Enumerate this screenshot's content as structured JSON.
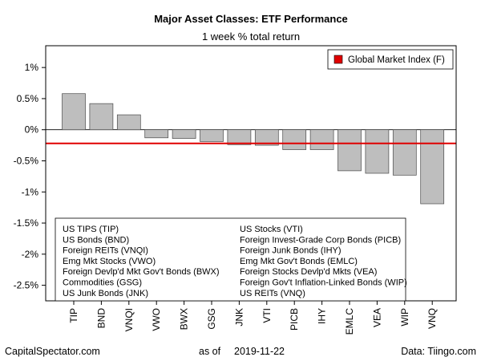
{
  "chart_data": {
    "type": "bar",
    "title": "Major Asset Classes: ETF Performance",
    "subtitle": "1 week % total return",
    "categories": [
      "TIP",
      "BND",
      "VNQI",
      "VWO",
      "BWX",
      "GSG",
      "JNK",
      "VTI",
      "PICB",
      "IHY",
      "EMLC",
      "VEA",
      "WIP",
      "VNQ"
    ],
    "values": [
      0.58,
      0.42,
      0.24,
      -0.13,
      -0.14,
      -0.19,
      -0.24,
      -0.25,
      -0.32,
      -0.32,
      -0.66,
      -0.7,
      -0.73,
      -1.19
    ],
    "ylim": [
      -2.75,
      1.35
    ],
    "yticks": [
      1,
      0.5,
      0,
      -0.5,
      -1,
      -1.5,
      -2,
      -2.5
    ],
    "ytick_labels": [
      "1%",
      "0.5%",
      "0%",
      "-0.5%",
      "-1%",
      "-1.5%",
      "-2%",
      "-2.5%"
    ],
    "bar_color": "#bebebe",
    "reference_line": {
      "value": -0.22,
      "label": "Global Market Index (F)",
      "color": "#e00000"
    },
    "legend_position": "top-right",
    "key_left": [
      "US TIPS (TIP)",
      "US Bonds (BND)",
      "Foreign REITs (VNQI)",
      "Emg Mkt Stocks (VWO)",
      "Foreign Devlp'd Mkt Gov't Bonds (BWX)",
      "Commodities (GSG)",
      "US Junk Bonds (JNK)"
    ],
    "key_right": [
      "US Stocks (VTI)",
      "Foreign Invest-Grade Corp Bonds (PICB)",
      "Foreign Junk Bonds (IHY)",
      "Emg Mkt Gov't Bonds (EMLC)",
      "Foreign Stocks Devlp'd Mkts (VEA)",
      "Foreign Gov't Inflation-Linked Bonds (WIP)",
      "US REITs (VNQ)"
    ]
  },
  "footer": {
    "source": "CapitalSpectator.com",
    "as_of_label": "as of",
    "date": "2019-11-22",
    "data_source": "Data: Tiingo.com"
  }
}
